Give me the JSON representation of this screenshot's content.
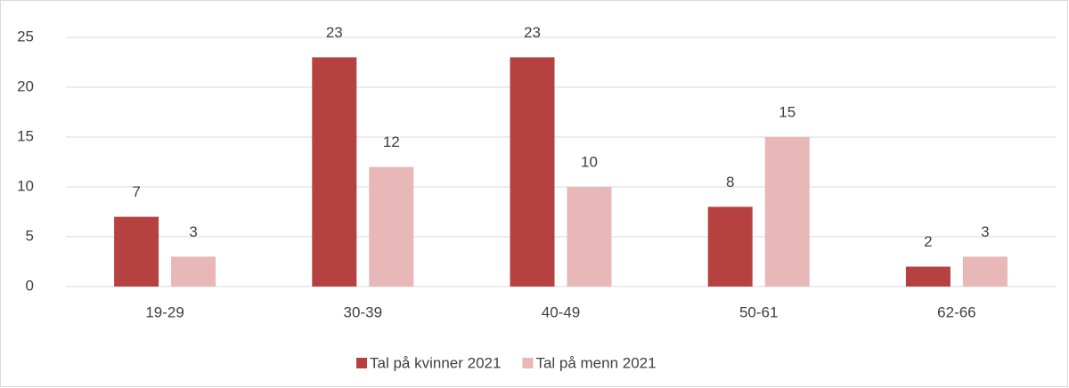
{
  "chart_data": {
    "type": "bar",
    "categories": [
      "19-29",
      "30-39",
      "40-49",
      "50-61",
      "62-66"
    ],
    "series": [
      {
        "name": "Tal på kvinner 2021",
        "color": "#b54240",
        "values": [
          7,
          23,
          23,
          8,
          2
        ]
      },
      {
        "name": "Tal på menn 2021",
        "color": "#e8b7b7",
        "values": [
          3,
          12,
          10,
          15,
          3
        ]
      }
    ],
    "ylim": [
      0,
      25
    ],
    "yticks": [
      0,
      5,
      10,
      15,
      20,
      25
    ],
    "grid": true,
    "legend": "bottom"
  }
}
